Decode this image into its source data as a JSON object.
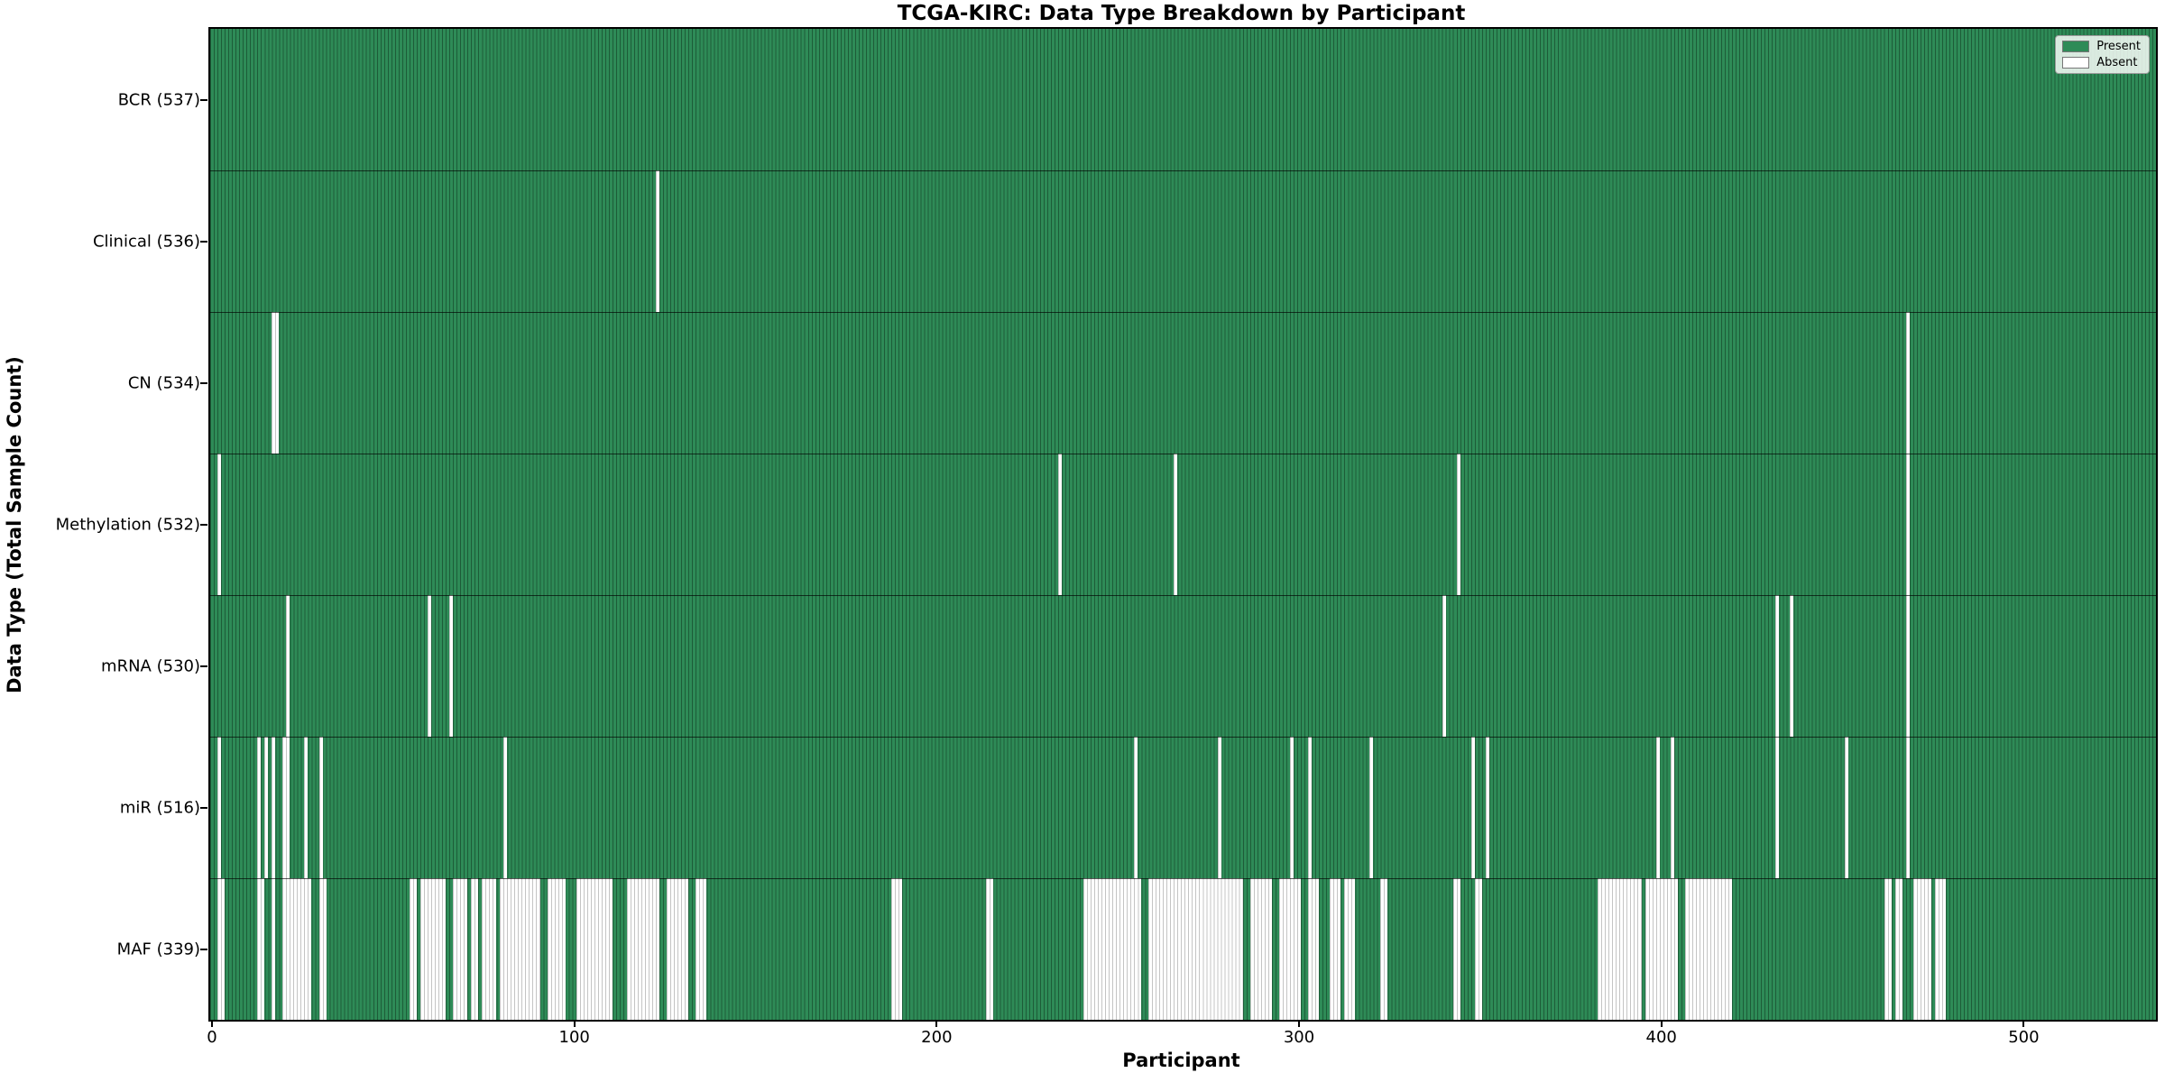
{
  "chart_data": {
    "type": "heatmap",
    "title": "TCGA-KIRC: Data Type Breakdown by Participant",
    "xlabel": "Participant",
    "ylabel": "Data Type (Total Sample Count)",
    "x_ticks": [
      0,
      100,
      200,
      300,
      400,
      500
    ],
    "x_range": [
      -0.5,
      536.5
    ],
    "n_participants": 537,
    "grid": false,
    "legend": {
      "position": "upper right",
      "entries": [
        {
          "label": "Present",
          "color": "#2e8b57"
        },
        {
          "label": "Absent",
          "color": "#ffffff"
        }
      ]
    },
    "colors": {
      "present_fill": "#2e8b57",
      "present_edge": "#1d5c38",
      "absent_fill": "#ffffff",
      "absent_edge": "#c4c4c4",
      "row_divider": "rgba(0,0,0,0.65)",
      "spine": "#000000"
    },
    "rows": [
      {
        "label": "BCR (537)",
        "data_type": "BCR",
        "present_count": 537,
        "absent_runs": []
      },
      {
        "label": "Clinical (536)",
        "data_type": "Clinical",
        "present_count": 536,
        "absent_runs": [
          [
            123,
            123
          ]
        ]
      },
      {
        "label": "CN (534)",
        "data_type": "CN",
        "present_count": 534,
        "absent_runs": [
          [
            17,
            18
          ],
          [
            468,
            468
          ]
        ]
      },
      {
        "label": "Methylation (532)",
        "data_type": "Methylation",
        "present_count": 532,
        "absent_runs": [
          [
            2,
            2
          ],
          [
            234,
            234
          ],
          [
            266,
            266
          ],
          [
            344,
            344
          ],
          [
            468,
            468
          ]
        ]
      },
      {
        "label": "mRNA (530)",
        "data_type": "mRNA",
        "present_count": 530,
        "absent_runs": [
          [
            21,
            21
          ],
          [
            60,
            60
          ],
          [
            66,
            66
          ],
          [
            340,
            340
          ],
          [
            432,
            432
          ],
          [
            436,
            436
          ],
          [
            468,
            468
          ]
        ]
      },
      {
        "label": "miR (516)",
        "data_type": "miR",
        "present_count": 516,
        "absent_runs": [
          [
            2,
            2
          ],
          [
            13,
            13
          ],
          [
            15,
            15
          ],
          [
            17,
            17
          ],
          [
            20,
            21
          ],
          [
            26,
            26
          ],
          [
            30,
            30
          ],
          [
            81,
            81
          ],
          [
            255,
            255
          ],
          [
            278,
            278
          ],
          [
            298,
            298
          ],
          [
            303,
            303
          ],
          [
            320,
            320
          ],
          [
            348,
            348
          ],
          [
            352,
            352
          ],
          [
            399,
            399
          ],
          [
            403,
            403
          ],
          [
            432,
            432
          ],
          [
            451,
            451
          ],
          [
            468,
            468
          ]
        ]
      },
      {
        "label": "MAF (339)",
        "data_type": "MAF",
        "present_count": 339,
        "absent_runs": [
          [
            2,
            3
          ],
          [
            13,
            14
          ],
          [
            17,
            17
          ],
          [
            20,
            27
          ],
          [
            30,
            31
          ],
          [
            55,
            56
          ],
          [
            58,
            64
          ],
          [
            67,
            70
          ],
          [
            72,
            73
          ],
          [
            75,
            78
          ],
          [
            80,
            90
          ],
          [
            93,
            97
          ],
          [
            101,
            110
          ],
          [
            115,
            123
          ],
          [
            126,
            131
          ],
          [
            134,
            136
          ],
          [
            188,
            190
          ],
          [
            214,
            215
          ],
          [
            241,
            256
          ],
          [
            259,
            284
          ],
          [
            287,
            292
          ],
          [
            295,
            300
          ],
          [
            303,
            305
          ],
          [
            309,
            311
          ],
          [
            313,
            315
          ],
          [
            323,
            324
          ],
          [
            343,
            344
          ],
          [
            349,
            350
          ],
          [
            383,
            394
          ],
          [
            396,
            404
          ],
          [
            407,
            419
          ],
          [
            462,
            463
          ],
          [
            465,
            466
          ],
          [
            470,
            474
          ],
          [
            476,
            478
          ]
        ]
      }
    ]
  }
}
